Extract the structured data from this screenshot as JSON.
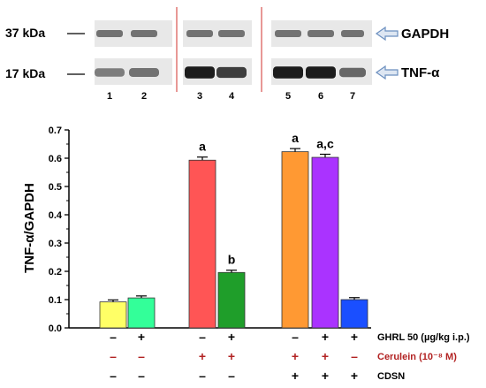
{
  "blot": {
    "marker_labels": [
      "37 kDa",
      "17 kDa"
    ],
    "protein_labels": [
      "GAPDH",
      "TNF-α"
    ],
    "lane_numbers": [
      "1",
      "2",
      "3",
      "4",
      "5",
      "6",
      "7"
    ],
    "gapdh_band_intensity": [
      0.55,
      0.55,
      0.55,
      0.55,
      0.55,
      0.55,
      0.55
    ],
    "tnf_band_intensity": [
      0.5,
      0.55,
      0.95,
      0.8,
      0.95,
      0.95,
      0.6
    ],
    "colors": {
      "band": "#111111",
      "background": "#e8e8e8",
      "divider": "#d9534f",
      "arrow_fill": "#dde6f2",
      "arrow_stroke": "#6b8fbf"
    }
  },
  "chart_data": {
    "type": "bar",
    "ylabel": "TNF-α/GAPDH",
    "ylim": [
      0.0,
      0.7
    ],
    "yticks": [
      0.0,
      0.1,
      0.2,
      0.3,
      0.4,
      0.5,
      0.6,
      0.7
    ],
    "ytick_labels": [
      "0.0",
      "0.1",
      "0.2",
      "0.3",
      "0.4",
      "0.5",
      "0.6",
      "0.7"
    ],
    "grid": false,
    "values": [
      0.092,
      0.106,
      0.593,
      0.196,
      0.623,
      0.603,
      0.1
    ],
    "errors": [
      0.007,
      0.007,
      0.011,
      0.008,
      0.011,
      0.011,
      0.007
    ],
    "colors": [
      "#ffff66",
      "#33ff99",
      "#ff5555",
      "#1f9e2a",
      "#ff9933",
      "#aa33ff",
      "#1a4fff"
    ],
    "annotations": [
      "",
      "",
      "a",
      "b",
      "a",
      "a,c",
      ""
    ],
    "conditions": [
      {
        "label": "GHRL 50 (µg/kg i.p.)",
        "values": [
          "–",
          "+",
          "–",
          "+",
          "–",
          "+",
          "+"
        ],
        "color": "#000000"
      },
      {
        "label": "Cerulein (10⁻⁸ M)",
        "values": [
          "–",
          "–",
          "+",
          "+",
          "+",
          "+",
          "–"
        ],
        "color": "#b22222"
      },
      {
        "label": "CDSN",
        "values": [
          "–",
          "–",
          "–",
          "–",
          "+",
          "+",
          "+"
        ],
        "color": "#000000"
      }
    ]
  }
}
